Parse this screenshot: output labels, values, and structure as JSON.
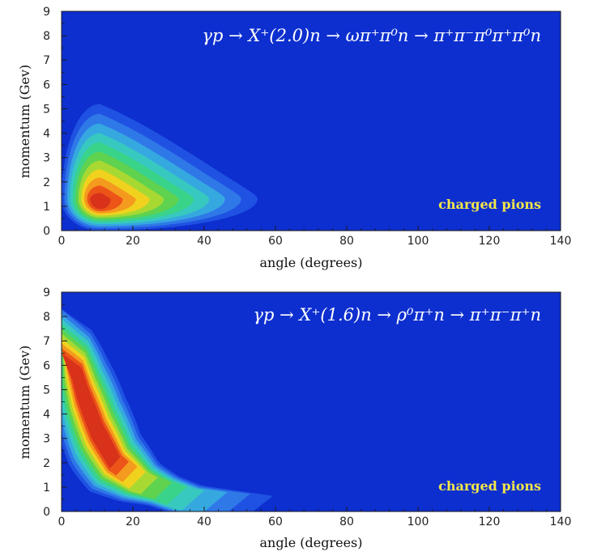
{
  "chart_data": [
    {
      "type": "heatmap",
      "title": "γp → X⁺(2.0)n → ωπ⁺π⁰n → π⁺π⁻π⁰π⁺π⁰n",
      "xlabel": "angle (degrees)",
      "ylabel": "momentum (Gev)",
      "xlim": [
        0,
        140
      ],
      "ylim": [
        0,
        9
      ],
      "xticks": [
        0,
        20,
        40,
        60,
        80,
        100,
        120,
        140
      ],
      "yticks": [
        0,
        1,
        2,
        3,
        4,
        5,
        6,
        7,
        8,
        9
      ],
      "annotation": "charged pions",
      "background_color": "#0d2fcf",
      "annotation_color": "#f3e64a",
      "density_peak": {
        "angle": 11,
        "momentum": 1.3
      },
      "density_extent": {
        "max_angle": 55,
        "max_momentum": 5.2
      },
      "contour_levels": [
        {
          "label": "level-1",
          "color": "#1f52e2"
        },
        {
          "label": "level-2",
          "color": "#2f78e8"
        },
        {
          "label": "level-3",
          "color": "#35a8e0"
        },
        {
          "label": "level-4",
          "color": "#37c8c0"
        },
        {
          "label": "level-5",
          "color": "#3ad38a"
        },
        {
          "label": "level-6",
          "color": "#5fd24f"
        },
        {
          "label": "level-7",
          "color": "#a7d932"
        },
        {
          "label": "level-8",
          "color": "#f0d21e"
        },
        {
          "label": "level-9",
          "color": "#f49a1e"
        },
        {
          "label": "level-10",
          "color": "#ec5418"
        },
        {
          "label": "level-11",
          "color": "#d8321a"
        }
      ],
      "grid": false,
      "legend": "none"
    },
    {
      "type": "heatmap",
      "title": "γp → X⁺(1.6)n → ρ⁰π⁺n → π⁺π⁻π⁺n",
      "xlabel": "angle (degrees)",
      "ylabel": "momentum (Gev)",
      "xlim": [
        0,
        140
      ],
      "ylim": [
        0,
        9
      ],
      "xticks": [
        0,
        20,
        40,
        60,
        80,
        100,
        120,
        140
      ],
      "yticks": [
        0,
        1,
        2,
        3,
        4,
        5,
        6,
        7,
        8,
        9
      ],
      "annotation": "charged pions",
      "background_color": "#0d2fcf",
      "annotation_color": "#f3e64a",
      "density_ridge": [
        {
          "angle": 3,
          "momentum": 6.3
        },
        {
          "angle": 6,
          "momentum": 4.8
        },
        {
          "angle": 10,
          "momentum": 3.3
        },
        {
          "angle": 15,
          "momentum": 2.0
        },
        {
          "angle": 22,
          "momentum": 1.2
        },
        {
          "angle": 35,
          "momentum": 0.5
        },
        {
          "angle": 55,
          "momentum": 0.15
        }
      ],
      "density_extent": {
        "max_angle": 62,
        "max_momentum": 8.3
      },
      "grid": false,
      "legend": "none"
    }
  ]
}
